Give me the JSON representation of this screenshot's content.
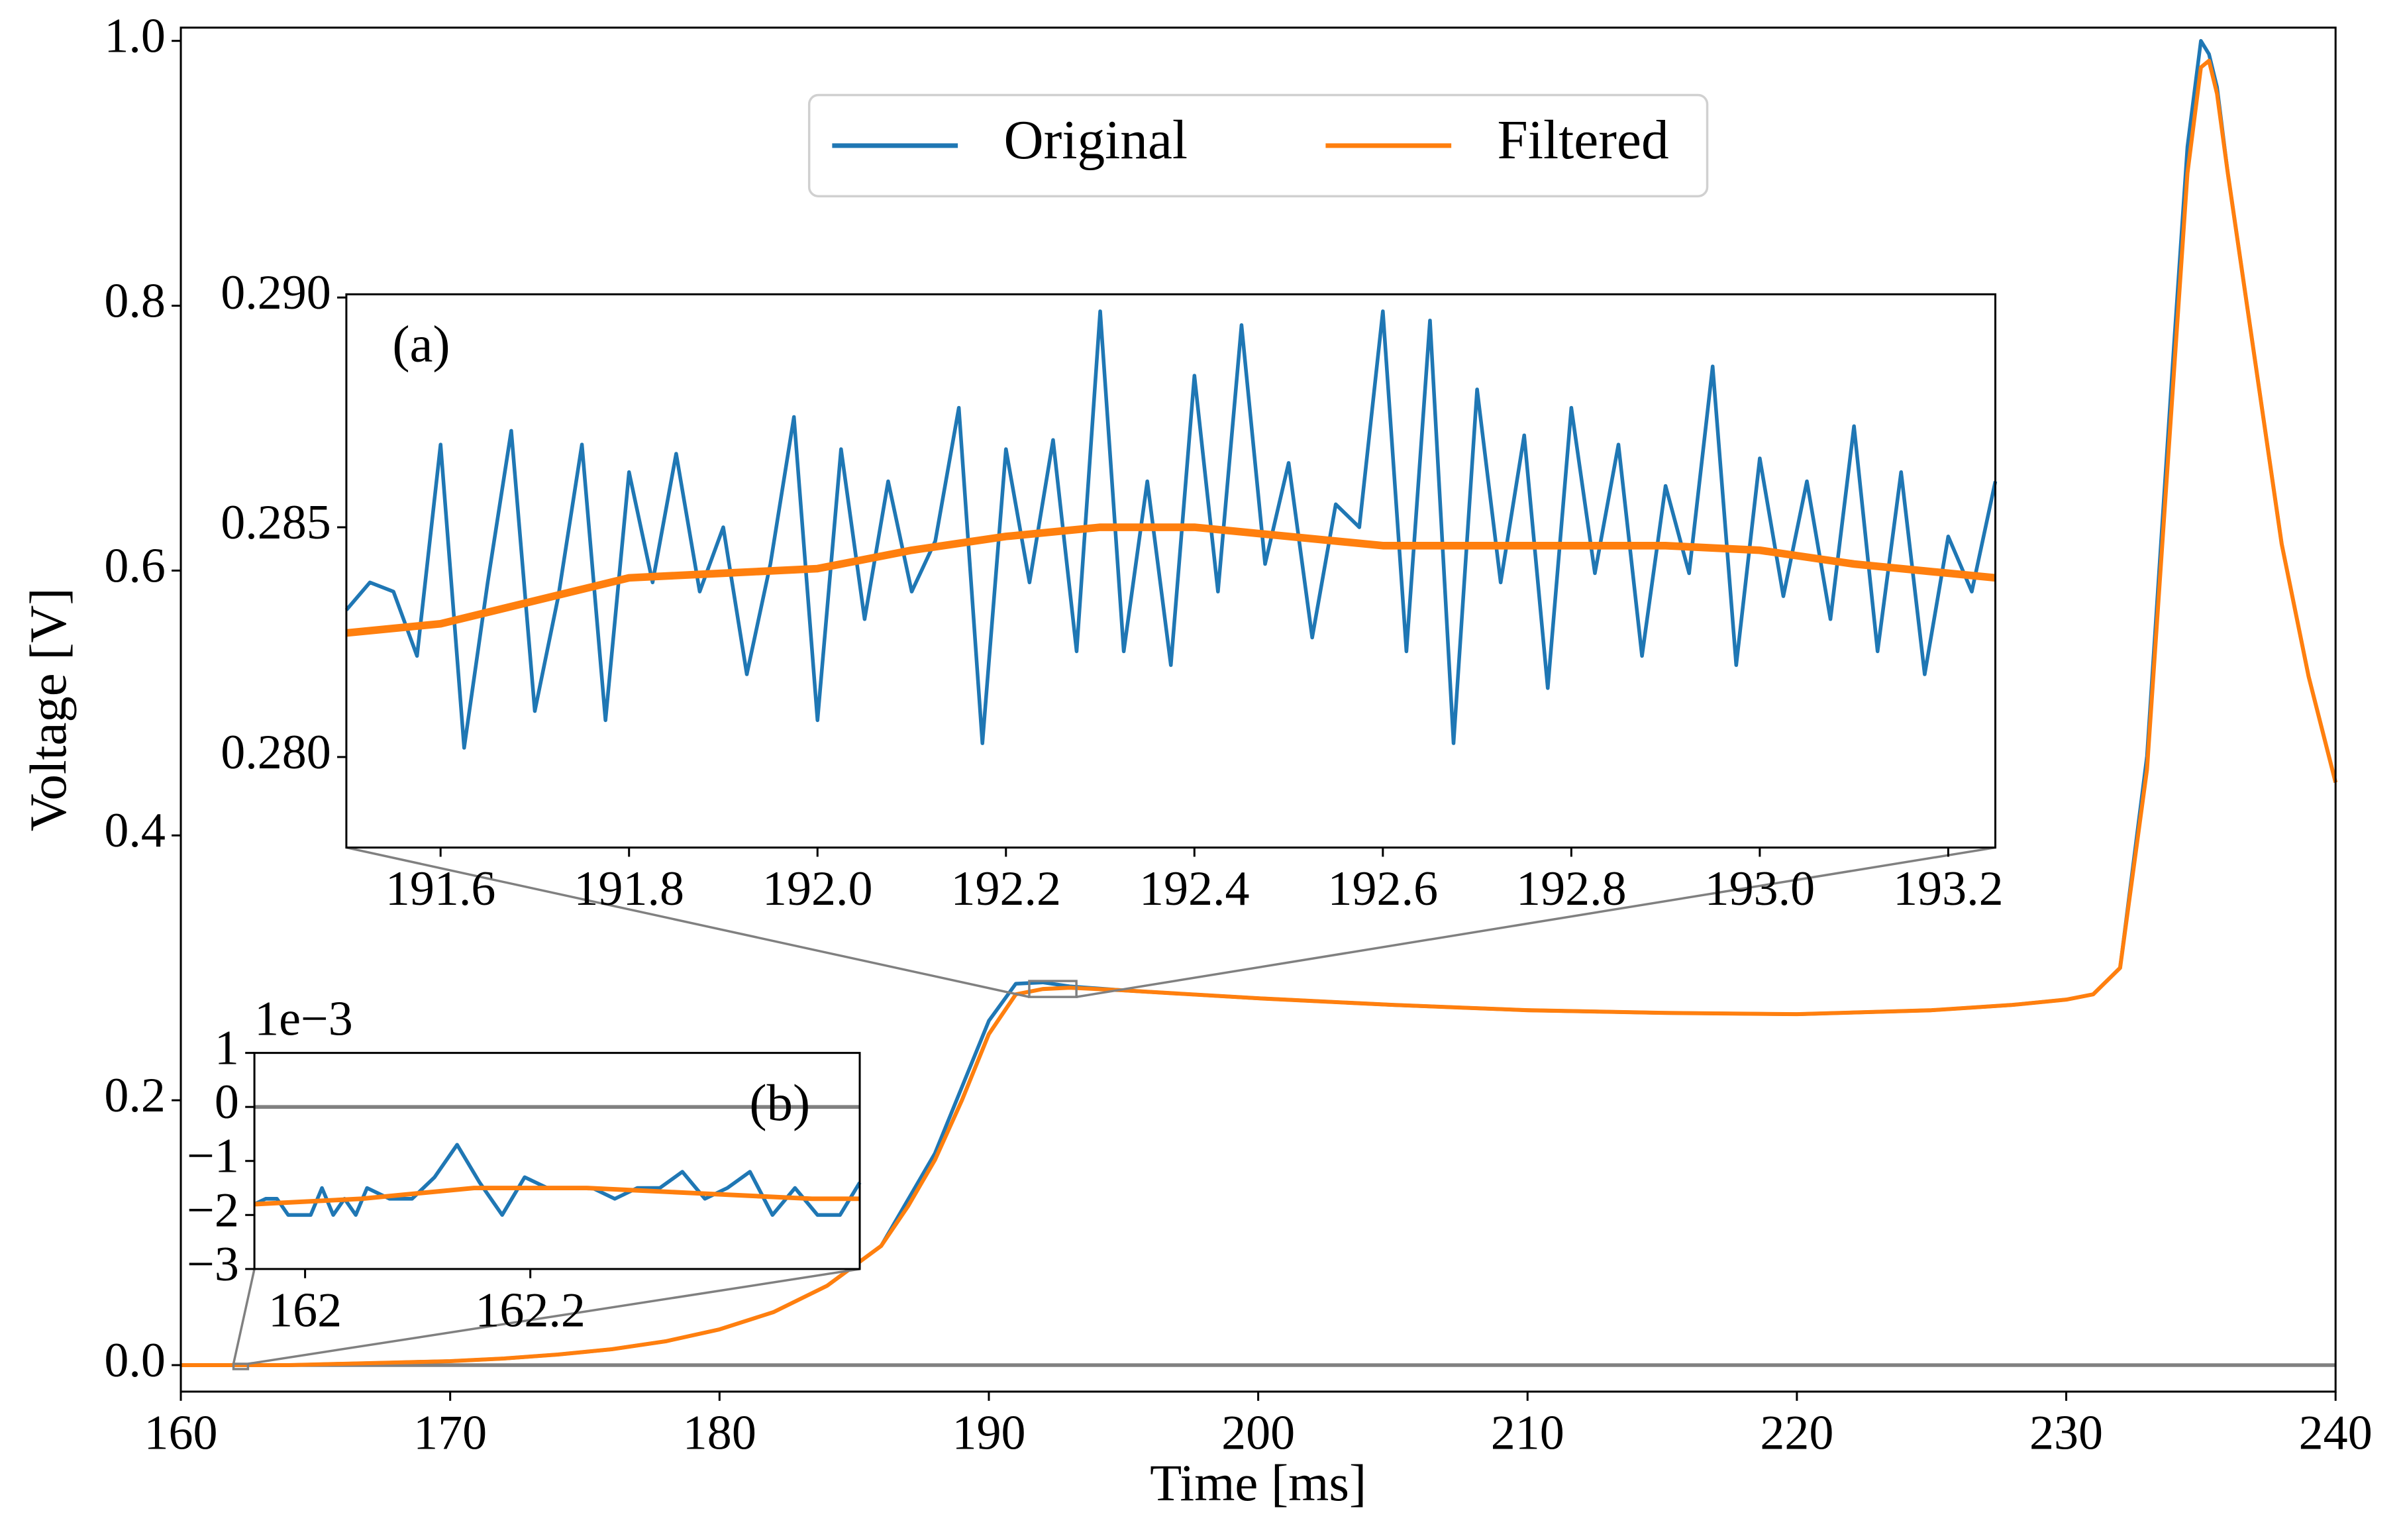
{
  "chart_data": [
    {
      "type": "line",
      "xlabel": "Time [ms]",
      "ylabel": "Voltage [V]",
      "xlim": [
        160,
        240
      ],
      "ylim": [
        -0.02,
        1.01
      ],
      "xticks": [
        160,
        170,
        180,
        190,
        200,
        210,
        220,
        230,
        240
      ],
      "yticks": [
        {
          "value": 0,
          "label": "0.0"
        },
        0.2,
        0.4,
        0.6,
        0.8,
        {
          "value": 1,
          "label": "1.0"
        }
      ],
      "hline": 0,
      "legend": "upper center",
      "series": [
        {
          "name": "Original",
          "color": "#1f77b4",
          "x": [
            160,
            162,
            164,
            166,
            168,
            170,
            172,
            174,
            176,
            178,
            180,
            182,
            184,
            186,
            187,
            188,
            189,
            190,
            191,
            192,
            193,
            195,
            200,
            205,
            210,
            215,
            220,
            225,
            228,
            230,
            231,
            232,
            233,
            234,
            234.5,
            235,
            235.3,
            235.6,
            236,
            237,
            238,
            239,
            240
          ],
          "values": [
            0,
            0,
            0,
            0.001,
            0.002,
            0.003,
            0.005,
            0.008,
            0.012,
            0.018,
            0.027,
            0.04,
            0.06,
            0.09,
            0.125,
            0.16,
            0.21,
            0.26,
            0.288,
            0.289,
            0.286,
            0.283,
            0.277,
            0.272,
            0.268,
            0.266,
            0.265,
            0.268,
            0.272,
            0.276,
            0.28,
            0.3,
            0.46,
            0.77,
            0.92,
            1.0,
            0.99,
            0.965,
            0.9,
            0.76,
            0.62,
            0.52,
            0.44
          ]
        },
        {
          "name": "Filtered",
          "color": "#ff7f0e",
          "x": [
            160,
            162,
            164,
            166,
            168,
            170,
            172,
            174,
            176,
            178,
            180,
            182,
            184,
            186,
            187,
            188,
            189,
            190,
            191,
            192,
            193,
            195,
            200,
            205,
            210,
            215,
            220,
            225,
            228,
            230,
            231,
            232,
            233,
            234,
            234.5,
            235,
            235.3,
            235.6,
            236,
            237,
            238,
            239,
            240
          ],
          "values": [
            0,
            0,
            0,
            0.001,
            0.002,
            0.003,
            0.005,
            0.008,
            0.012,
            0.018,
            0.027,
            0.04,
            0.06,
            0.09,
            0.12,
            0.155,
            0.2,
            0.25,
            0.28,
            0.284,
            0.285,
            0.283,
            0.277,
            0.272,
            0.268,
            0.266,
            0.265,
            0.268,
            0.272,
            0.276,
            0.28,
            0.3,
            0.45,
            0.75,
            0.9,
            0.98,
            0.985,
            0.96,
            0.9,
            0.76,
            0.62,
            0.52,
            0.44
          ]
        }
      ]
    },
    {
      "type": "line",
      "annotation": "(a)",
      "xlim": [
        191.5,
        193.25
      ],
      "ylim": [
        0.27803,
        0.29007
      ],
      "xticks": [
        191.6,
        191.8,
        {
          "value": 192,
          "label": "192.0"
        },
        192.2,
        192.4,
        192.6,
        192.8,
        {
          "value": 193,
          "label": "193.0"
        },
        193.2
      ],
      "yticks": [
        {
          "value": 0.28,
          "label": "0.280"
        },
        {
          "value": 0.285,
          "label": "0.285"
        },
        {
          "value": 0.29,
          "label": "0.290"
        }
      ],
      "series": [
        {
          "color": "#1f77b4",
          "x": [
            191.5,
            191.525,
            191.55,
            191.575,
            191.6,
            191.625,
            191.65,
            191.675,
            191.7,
            191.725,
            191.75,
            191.775,
            191.8,
            191.825,
            191.85,
            191.875,
            191.9,
            191.925,
            191.95,
            191.975,
            192,
            192.025,
            192.05,
            192.075,
            192.1,
            192.125,
            192.15,
            192.175,
            192.2,
            192.225,
            192.25,
            192.275,
            192.3,
            192.325,
            192.35,
            192.375,
            192.4,
            192.425,
            192.45,
            192.475,
            192.5,
            192.525,
            192.55,
            192.575,
            192.6,
            192.625,
            192.65,
            192.675,
            192.7,
            192.725,
            192.75,
            192.775,
            192.8,
            192.825,
            192.85,
            192.875,
            192.9,
            192.925,
            192.95,
            192.975,
            193,
            193.025,
            193.05,
            193.075,
            193.1,
            193.125,
            193.15,
            193.175,
            193.2,
            193.225,
            193.25
          ],
          "values": [
            0.2832,
            0.2838,
            0.2836,
            0.2822,
            0.2868,
            0.2802,
            0.2838,
            0.2871,
            0.281,
            0.2835,
            0.2868,
            0.2808,
            0.2862,
            0.2838,
            0.2866,
            0.2836,
            0.285,
            0.2818,
            0.2842,
            0.2874,
            0.2808,
            0.2867,
            0.283,
            0.286,
            0.2836,
            0.2847,
            0.2876,
            0.2803,
            0.2867,
            0.2838,
            0.2869,
            0.2823,
            0.2897,
            0.2823,
            0.286,
            0.282,
            0.2883,
            0.2836,
            0.2894,
            0.2842,
            0.2864,
            0.2826,
            0.2855,
            0.285,
            0.2897,
            0.2823,
            0.2895,
            0.2803,
            0.288,
            0.2838,
            0.287,
            0.2815,
            0.2876,
            0.284,
            0.2868,
            0.2822,
            0.2859,
            0.284,
            0.2885,
            0.282,
            0.2865,
            0.2835,
            0.286,
            0.283,
            0.2872,
            0.2823,
            0.2862,
            0.2818,
            0.2848,
            0.2836,
            0.286
          ]
        },
        {
          "color": "#ff7f0e",
          "x": [
            191.5,
            191.6,
            191.7,
            191.8,
            191.9,
            192,
            192.1,
            192.2,
            192.3,
            192.4,
            192.5,
            192.6,
            192.7,
            192.8,
            192.9,
            193,
            193.1,
            193.2,
            193.25
          ],
          "values": [
            0.2827,
            0.2829,
            0.2834,
            0.2839,
            0.284,
            0.2841,
            0.2845,
            0.2848,
            0.285,
            0.285,
            0.2848,
            0.2846,
            0.2846,
            0.2846,
            0.2846,
            0.2845,
            0.2842,
            0.284,
            0.2839
          ]
        }
      ]
    },
    {
      "type": "line",
      "annotation": "(b)",
      "y_offset_label": "1e−3",
      "xlim": [
        161.955,
        162.4925
      ],
      "ylim": [
        -0.003,
        0.001
      ],
      "xticks": [
        162,
        162.2
      ],
      "yticks": [
        {
          "value": -0.003,
          "label": "−3"
        },
        {
          "value": -0.002,
          "label": "−2"
        },
        {
          "value": -0.001,
          "label": "−1"
        },
        0,
        {
          "value": 0.001,
          "label": "1"
        }
      ],
      "hline": 0,
      "series": [
        {
          "color": "#1f77b4",
          "x": [
            161.955,
            161.965,
            161.975,
            161.985,
            161.995,
            162.005,
            162.015,
            162.025,
            162.035,
            162.045,
            162.055,
            162.075,
            162.095,
            162.115,
            162.135,
            162.155,
            162.175,
            162.195,
            162.215,
            162.235,
            162.255,
            162.275,
            162.295,
            162.315,
            162.335,
            162.355,
            162.375,
            162.395,
            162.415,
            162.435,
            162.455,
            162.475,
            162.4925
          ],
          "values": [
            -0.0018,
            -0.0017,
            -0.0017,
            -0.002,
            -0.002,
            -0.002,
            -0.0015,
            -0.002,
            -0.0017,
            -0.002,
            -0.0015,
            -0.0017,
            -0.0017,
            -0.0013,
            -0.0007,
            -0.0014,
            -0.002,
            -0.0013,
            -0.0015,
            -0.0015,
            -0.0015,
            -0.0017,
            -0.0015,
            -0.0015,
            -0.0012,
            -0.0017,
            -0.0015,
            -0.0012,
            -0.002,
            -0.0015,
            -0.002,
            -0.002,
            -0.0014
          ]
        },
        {
          "color": "#ff7f0e",
          "x": [
            161.955,
            162.05,
            162.15,
            162.25,
            162.35,
            162.45,
            162.4925
          ],
          "values": [
            -0.0018,
            -0.0017,
            -0.0015,
            -0.0015,
            -0.0016,
            -0.0017,
            -0.0017
          ]
        }
      ]
    }
  ]
}
